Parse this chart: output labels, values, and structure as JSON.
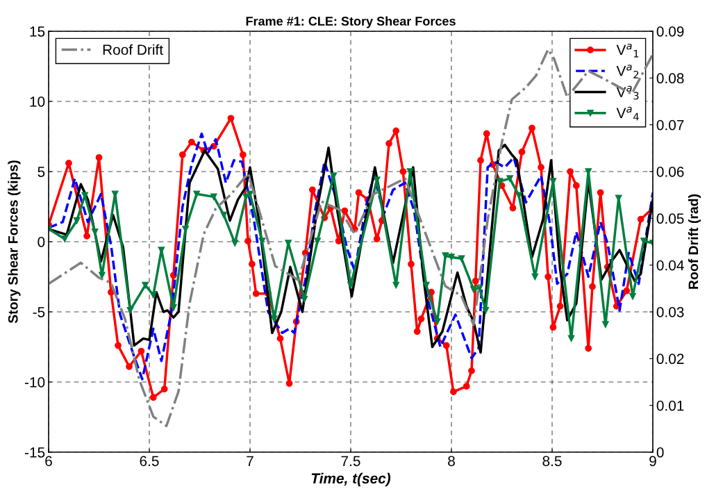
{
  "chart_data": {
    "type": "line",
    "title": "Frame #1: CLE: Story Shear Forces",
    "xlabel": "Time, t(sec)",
    "ylabel": "Story Shear Forces (kips)",
    "y2label": "Roof Drift (rad)",
    "xlim": [
      6,
      9
    ],
    "xticks": [
      6,
      6.5,
      7,
      7.5,
      8,
      8.5,
      9
    ],
    "ylim": [
      -15,
      15
    ],
    "yticks": [
      -15,
      -10,
      -5,
      0,
      5,
      10,
      15
    ],
    "y2lim": [
      0,
      0.09
    ],
    "y2ticks": [
      0,
      0.01,
      0.02,
      0.03,
      0.04,
      0.05,
      0.06,
      0.07,
      0.08,
      0.09
    ],
    "grid": true,
    "legend": "top right",
    "series": [
      {
        "name": "V$^{a}$$_{1}$",
        "color": "#ff0000",
        "marker": "circle",
        "line_style": "solid",
        "x": [
          6.0,
          6.1,
          6.19,
          6.25,
          6.31,
          6.345,
          6.4,
          6.46,
          6.52,
          6.575,
          6.62,
          6.665,
          6.71,
          6.77,
          6.82,
          6.905,
          6.965,
          6.99,
          7.01,
          7.03,
          7.09,
          7.15,
          7.195,
          7.23,
          7.275,
          7.31,
          7.37,
          7.4,
          7.44,
          7.47,
          7.52,
          7.54,
          7.585,
          7.63,
          7.655,
          7.69,
          7.725,
          7.76,
          7.8,
          7.83,
          7.85,
          7.9,
          7.93,
          7.975,
          8.01,
          8.075,
          8.1,
          8.12,
          8.145,
          8.175,
          8.205,
          8.25,
          8.305,
          8.35,
          8.4,
          8.445,
          8.48,
          8.505,
          8.54,
          8.59,
          8.62,
          8.68,
          8.7,
          8.74,
          8.775,
          8.82,
          8.87,
          8.94,
          9.0
        ],
        "values": [
          1.2,
          5.6,
          0.4,
          6.0,
          -3.6,
          -7.4,
          -8.9,
          -7.8,
          -11.1,
          -10.5,
          -2.4,
          6.2,
          7.1,
          6.5,
          6.8,
          8.8,
          6.2,
          0.05,
          -1.6,
          -3.7,
          -3.7,
          -6.9,
          -10.1,
          -5.7,
          -0.8,
          3.7,
          1.7,
          2.4,
          0.05,
          2.2,
          0.9,
          3.5,
          3.0,
          0.2,
          1.5,
          7.0,
          7.9,
          5.0,
          -1.6,
          -6.4,
          -5.5,
          -3.6,
          -6.9,
          -7.4,
          -10.7,
          -10.3,
          -9.2,
          -2.8,
          5.8,
          7.7,
          5.5,
          4.0,
          2.4,
          6.4,
          8.1,
          5.3,
          -2.5,
          -6.1,
          -4.6,
          5.0,
          4.0,
          -7.6,
          -3.2,
          3.5,
          -1.8,
          -4.6,
          -3.5,
          1.6,
          2.4
        ]
      },
      {
        "name": "V$^{a}$$_{2}$",
        "color": "#0000ff",
        "marker": "none",
        "line_style": "dashed",
        "x": [
          6.0,
          6.07,
          6.13,
          6.195,
          6.26,
          6.31,
          6.355,
          6.425,
          6.465,
          6.52,
          6.56,
          6.61,
          6.665,
          6.71,
          6.76,
          6.79,
          6.83,
          6.88,
          6.92,
          6.96,
          7.02,
          7.09,
          7.16,
          7.195,
          7.22,
          7.275,
          7.32,
          7.37,
          7.425,
          7.48,
          7.52,
          7.575,
          7.615,
          7.665,
          7.71,
          7.77,
          7.815,
          7.875,
          7.945,
          8.02,
          8.1,
          8.135,
          8.18,
          8.215,
          8.265,
          8.31,
          8.37,
          8.445,
          8.49,
          8.525,
          8.575,
          8.62,
          8.68,
          8.74,
          8.775,
          8.835,
          8.88,
          8.93,
          9.0
        ],
        "values": [
          1.0,
          1.4,
          4.5,
          1.4,
          3.4,
          -0.25,
          -5.2,
          -8.2,
          -9.8,
          -6.2,
          -8.5,
          -5.0,
          2.5,
          5.5,
          7.7,
          6.3,
          7.3,
          4.2,
          5.8,
          5.7,
          1.5,
          -5.0,
          -6.5,
          -6.2,
          -6.5,
          -2.7,
          2.0,
          5.7,
          3.2,
          -0.4,
          -2.1,
          2.5,
          4.7,
          2.0,
          3.7,
          4.2,
          2.2,
          -3.7,
          -7.5,
          -5.2,
          -8.3,
          -7.6,
          5.3,
          5.7,
          5.3,
          6.0,
          2.8,
          4.7,
          1.2,
          -3.0,
          -2.3,
          0.7,
          -2.5,
          1.4,
          -0.1,
          -4.9,
          -0.8,
          -3.0,
          3.5
        ]
      },
      {
        "name": "V$^{a}$$_{3}$",
        "color": "#000000",
        "marker": "none",
        "line_style": "solid",
        "x": [
          6.0,
          6.09,
          6.16,
          6.195,
          6.26,
          6.32,
          6.37,
          6.425,
          6.47,
          6.5,
          6.535,
          6.57,
          6.59,
          6.62,
          6.645,
          6.7,
          6.775,
          6.84,
          6.9,
          6.94,
          6.98,
          7.0,
          7.045,
          7.11,
          7.155,
          7.2,
          7.26,
          7.335,
          7.39,
          7.43,
          7.505,
          7.62,
          7.71,
          7.81,
          7.86,
          7.905,
          7.955,
          8.03,
          8.075,
          8.11,
          8.145,
          8.235,
          8.265,
          8.3,
          8.325,
          8.4,
          8.455,
          8.495,
          8.54,
          8.575,
          8.62,
          8.68,
          8.745,
          8.8,
          8.835,
          8.91,
          8.94,
          9.0
        ],
        "values": [
          0.9,
          0.5,
          4.1,
          3.0,
          -1.4,
          1.9,
          -0.4,
          -7.4,
          -6.9,
          -7.0,
          -3.6,
          -5.0,
          -4.9,
          -5.4,
          -5.0,
          4.2,
          6.5,
          5.2,
          1.5,
          3.0,
          3.9,
          5.3,
          1.5,
          -6.5,
          -5.0,
          -1.8,
          -5.0,
          2.5,
          6.7,
          2.5,
          -3.9,
          5.3,
          -1.5,
          5.3,
          -2.4,
          -7.5,
          -6.4,
          -2.2,
          -4.6,
          -5.7,
          -7.9,
          6.5,
          6.9,
          6.2,
          5.8,
          -1.1,
          1.6,
          5.8,
          -2.0,
          -5.6,
          -4.4,
          4.3,
          -2.7,
          -1.3,
          -0.6,
          -2.8,
          -2.3,
          3.0
        ]
      },
      {
        "name": "V$^{a}$$_{4}$",
        "color": "#007f3f",
        "marker": "triangle",
        "line_style": "solid",
        "x": [
          6.0,
          6.08,
          6.14,
          6.18,
          6.23,
          6.265,
          6.33,
          6.405,
          6.48,
          6.52,
          6.56,
          6.62,
          6.68,
          6.735,
          6.82,
          6.87,
          6.925,
          6.98,
          7.0,
          7.06,
          7.12,
          7.19,
          7.27,
          7.335,
          7.415,
          7.5,
          7.63,
          7.725,
          7.795,
          7.875,
          7.93,
          7.97,
          8.0,
          8.05,
          8.11,
          8.14,
          8.17,
          8.24,
          8.29,
          8.335,
          8.415,
          8.505,
          8.595,
          8.68,
          8.765,
          8.83,
          8.9,
          8.955,
          9.0
        ],
        "values": [
          0.9,
          0.2,
          1.5,
          3.3,
          0.7,
          -2.4,
          3.4,
          -4.9,
          -3.1,
          -3.8,
          -0.6,
          -4.7,
          0.9,
          3.4,
          3.2,
          1.9,
          -0.1,
          3.2,
          3.4,
          0.05,
          -5.5,
          -0.1,
          -4.1,
          0.05,
          4.7,
          -3.1,
          4.4,
          -3.1,
          5.0,
          -3.1,
          -5.7,
          -1.0,
          -1.1,
          -1.2,
          -3.4,
          -3.3,
          -4.9,
          4.3,
          4.5,
          3.3,
          -2.5,
          4.3,
          -6.9,
          5.0,
          -5.9,
          3.1,
          -3.9,
          0.05,
          -0.1
        ]
      },
      {
        "name": "Roof Drift",
        "color": "#808080",
        "marker": "none",
        "line_style": "dashdot",
        "axis": "y2",
        "x": [
          6.0,
          6.16,
          6.25,
          6.31,
          6.38,
          6.45,
          6.52,
          6.585,
          6.645,
          6.7,
          6.77,
          6.83,
          6.905,
          6.99,
          7.025,
          7.125,
          7.24,
          7.355,
          7.45,
          7.52,
          7.61,
          7.77,
          7.885,
          7.97,
          8.05,
          8.11,
          8.18,
          8.25,
          8.3,
          8.37,
          8.42,
          8.48,
          8.51,
          8.575,
          8.68,
          8.75,
          8.895,
          9.0
        ],
        "values": [
          0.036,
          0.0405,
          0.0373,
          0.0362,
          0.0284,
          0.0155,
          0.0076,
          0.0056,
          0.013,
          0.0318,
          0.0466,
          0.0521,
          0.0551,
          0.0596,
          0.0547,
          0.0398,
          0.0368,
          0.0536,
          0.0517,
          0.0466,
          0.0551,
          0.0585,
          0.0452,
          0.0355,
          0.0334,
          0.0272,
          0.0497,
          0.0661,
          0.0754,
          0.078,
          0.0805,
          0.0861,
          0.0841,
          0.0759,
          0.0815,
          0.08,
          0.0766,
          0.0851
        ]
      }
    ]
  }
}
